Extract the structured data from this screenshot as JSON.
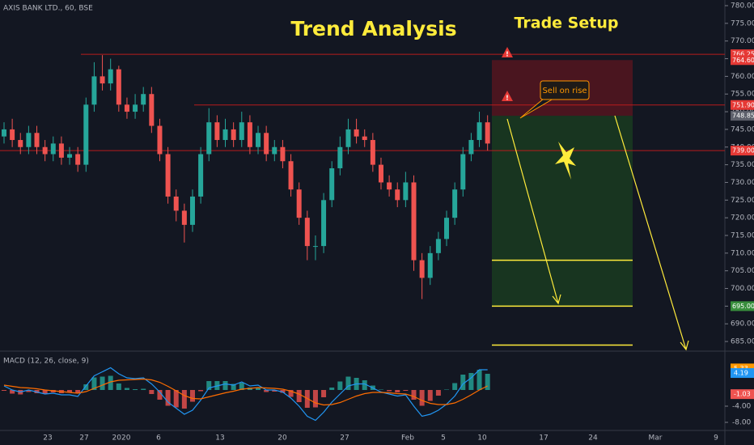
{
  "chart_data": [
    {
      "type": "candlestick",
      "title": "AXIS BANK LTD., 60, BSE",
      "annotations": {
        "heading": "Trend Analysis",
        "setup": "Trade Setup",
        "callout": "Sell on rise"
      },
      "open": [
        743,
        745,
        742,
        740,
        744,
        740,
        738,
        741,
        737,
        738,
        735,
        752,
        760,
        758,
        762,
        752,
        750,
        752,
        755,
        746,
        738,
        726,
        722,
        718,
        726,
        738,
        747,
        742,
        745,
        742,
        747,
        740,
        744,
        738,
        740,
        736,
        728,
        720,
        712,
        712,
        725,
        734,
        740,
        745,
        743,
        742,
        735,
        730,
        728,
        725,
        730,
        708,
        703,
        710,
        714,
        720,
        728,
        738,
        742,
        747
      ],
      "high": [
        747,
        748,
        744,
        746,
        746,
        742,
        743,
        743,
        740,
        740,
        754,
        764,
        766,
        765,
        763,
        754,
        755,
        757,
        757,
        748,
        740,
        728,
        724,
        728,
        740,
        751,
        749,
        748,
        747,
        750,
        749,
        746,
        746,
        742,
        742,
        738,
        730,
        722,
        715,
        727,
        736,
        743,
        748,
        748,
        745,
        744,
        737,
        732,
        730,
        733,
        732,
        710,
        712,
        716,
        722,
        730,
        740,
        744,
        750,
        749
      ],
      "low": [
        741,
        740,
        738,
        738,
        738,
        736,
        736,
        735,
        735,
        733,
        733,
        750,
        756,
        756,
        750,
        748,
        748,
        750,
        744,
        736,
        724,
        719,
        713,
        716,
        724,
        736,
        740,
        740,
        740,
        740,
        738,
        738,
        736,
        736,
        734,
        726,
        718,
        708,
        708,
        710,
        723,
        732,
        738,
        741,
        740,
        733,
        728,
        726,
        723,
        723,
        705,
        697,
        701,
        708,
        712,
        718,
        726,
        736,
        740,
        739
      ],
      "close": [
        745,
        742,
        740,
        744,
        740,
        738,
        741,
        737,
        738,
        735,
        752,
        760,
        758,
        762,
        752,
        750,
        752,
        755,
        746,
        738,
        726,
        722,
        718,
        726,
        738,
        747,
        742,
        745,
        742,
        747,
        740,
        744,
        738,
        740,
        736,
        728,
        720,
        712,
        712,
        725,
        734,
        740,
        745,
        743,
        742,
        735,
        730,
        728,
        725,
        730,
        708,
        703,
        710,
        714,
        720,
        728,
        738,
        742,
        747,
        741
      ],
      "up_color": "#26a69a",
      "down_color": "#ef5350",
      "ylim": [
        682.5,
        781.6
      ],
      "yticks": [
        {
          "value": 685,
          "label": "685.00"
        },
        {
          "value": 690,
          "label": "690.00"
        },
        {
          "value": 695,
          "label": "695.00"
        },
        {
          "value": 700,
          "label": "700.00"
        },
        {
          "value": 705,
          "label": "705.00"
        },
        {
          "value": 710,
          "label": "710.00"
        },
        {
          "value": 715,
          "label": "715.00"
        },
        {
          "value": 720,
          "label": "720.00"
        },
        {
          "value": 725,
          "label": "725.00"
        },
        {
          "value": 730,
          "label": "730.00"
        },
        {
          "value": 735,
          "label": "735.00"
        },
        {
          "value": 740,
          "label": "740.00"
        },
        {
          "value": 745,
          "label": "745.00"
        },
        {
          "value": 750,
          "label": "750.00"
        },
        {
          "value": 755,
          "label": "755.00"
        },
        {
          "value": 760,
          "label": "760.00"
        },
        {
          "value": 765,
          "label": "765.00"
        },
        {
          "value": 770,
          "label": "770.00"
        },
        {
          "value": 775,
          "label": "775.00"
        },
        {
          "value": 780,
          "label": "780.00"
        }
      ],
      "levels": [
        {
          "value": 766.25,
          "color": "#b71c1c"
        },
        {
          "value": 751.9,
          "color": "#b71c1c"
        },
        {
          "value": 739,
          "color": "#b71c1c"
        }
      ],
      "zones": [
        {
          "from": 764.6,
          "to": 748.85,
          "color": "rgba(120,20,30,0.55)"
        },
        {
          "from": 748.85,
          "to": 695,
          "color": "rgba(30,90,30,0.45)"
        }
      ],
      "targets": [
        708,
        695,
        684
      ],
      "target_color": "#ffeb3b",
      "price_labels": [
        {
          "value": 766.25,
          "color": "#e53935"
        },
        {
          "value": {
            "value": 764.6,
            "label": "764.60"
          },
          "color": "#e53935"
        },
        {
          "value": {
            "value": 751.9,
            "label": "751.90"
          },
          "color": "#e53935"
        },
        {
          "value": 748.85,
          "color": "#5d606b"
        },
        {
          "value": {
            "value": 739,
            "label": "739.00"
          },
          "color": "#e53935"
        },
        {
          "value": {
            "value": 695,
            "label": "695.00"
          },
          "color": "#388e3c"
        }
      ],
      "x_labels": [
        "23",
        "27",
        "2020",
        "6",
        "13",
        "20",
        "27",
        "Feb",
        "5",
        "10",
        "17",
        "24",
        "Mar",
        "9"
      ]
    },
    {
      "type": "macd",
      "title": "MACD (12, 26, close, 9)",
      "macd": [
        1,
        0,
        -0.5,
        0,
        -0.5,
        -1,
        -0.8,
        -1.2,
        -1.2,
        -1.6,
        1,
        3.5,
        4.5,
        5.5,
        4,
        3,
        2.8,
        3,
        1.5,
        -0.5,
        -3,
        -4.5,
        -6,
        -5,
        -2.5,
        0.5,
        1,
        1.5,
        1.2,
        2,
        1,
        1.2,
        0,
        0,
        -0.5,
        -2,
        -4,
        -6.5,
        -7.5,
        -5.5,
        -3,
        -1,
        1,
        1.5,
        1.5,
        0.5,
        -0.5,
        -1,
        -1.5,
        -1.2,
        -4,
        -6.5,
        -6,
        -5,
        -3.5,
        -1.5,
        1.5,
        3,
        5,
        5
      ],
      "signal": [
        1.2,
        0.9,
        0.6,
        0.5,
        0.3,
        0,
        -0.2,
        -0.4,
        -0.6,
        -0.8,
        -0.4,
        0.4,
        1.2,
        2,
        2.4,
        2.5,
        2.6,
        2.7,
        2.5,
        1.9,
        0.9,
        -0.2,
        -1.4,
        -2.1,
        -2.2,
        -1.7,
        -1.2,
        -0.7,
        -0.3,
        0.2,
        0.4,
        0.6,
        0.5,
        0.4,
        0.2,
        -0.3,
        -1,
        -2.1,
        -3.2,
        -3.7,
        -3.6,
        -3.1,
        -2.3,
        -1.5,
        -0.9,
        -0.6,
        -0.6,
        -0.7,
        -0.9,
        -1,
        -1.6,
        -2.6,
        -3.3,
        -3.6,
        -3.6,
        -3.2,
        -2.3,
        -1.2,
        0,
        1
      ],
      "histogram": [
        -0.2,
        -0.9,
        -1.1,
        -0.5,
        -0.8,
        -1,
        -0.6,
        -0.8,
        -0.6,
        -0.8,
        1.4,
        3.1,
        3.3,
        3.5,
        1.6,
        0.5,
        0.2,
        0.3,
        -1,
        -2.4,
        -3.9,
        -4.3,
        -4.6,
        -2.9,
        -0.3,
        2.2,
        2.2,
        2.2,
        1.5,
        1.8,
        0.6,
        0.6,
        -0.5,
        -0.4,
        -0.7,
        -1.7,
        -3,
        -4.4,
        -4.3,
        -1.8,
        0.6,
        2.1,
        3.3,
        3,
        2.4,
        1.1,
        0.1,
        -0.3,
        -0.6,
        -0.2,
        -2.4,
        -3.9,
        -2.7,
        -1.4,
        0.1,
        1.7,
        3.8,
        4.2,
        5,
        4
      ],
      "macd_color": "#2196f3",
      "signal_color": "#ff6d00",
      "pos_color": "#26a69a",
      "neg_color": "#ef5350",
      "ylim": [
        -10,
        9
      ],
      "yticks": [
        {
          "value": -4,
          "label": "-4.00"
        },
        {
          "value": -8,
          "label": "-8.00"
        }
      ],
      "value_labels": [
        {
          "value": 5.33,
          "color": "#ff9800"
        },
        {
          "value": 4.19,
          "color": "#2196f3"
        },
        {
          "value": -1.03,
          "color": "#ef5350"
        }
      ]
    }
  ]
}
